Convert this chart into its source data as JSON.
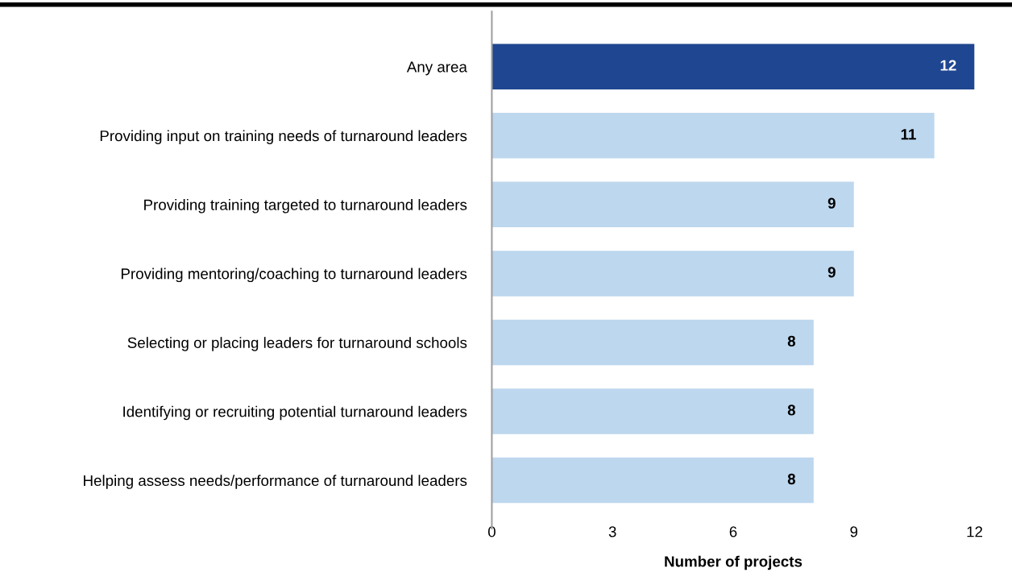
{
  "chart_data": {
    "type": "bar",
    "orientation": "horizontal",
    "xlabel": "Number of projects",
    "categories": [
      "Any area",
      "Providing input on training needs of turnaround leaders",
      "Providing training targeted to turnaround leaders",
      "Providing mentoring/coaching to turnaround leaders",
      "Selecting or placing leaders for turnaround schools",
      "Identifying or recruiting potential turnaround leaders",
      "Helping assess needs/performance of turnaround leaders"
    ],
    "values": [
      12,
      11,
      9,
      9,
      8,
      8,
      8
    ],
    "colors": [
      "#1f4690",
      "#bdd7ee",
      "#bdd7ee",
      "#bdd7ee",
      "#bdd7ee",
      "#bdd7ee",
      "#bdd7ee"
    ],
    "xlim": [
      0,
      12
    ],
    "xticks": [
      0,
      3,
      6,
      9,
      12
    ],
    "grid": false,
    "legend": false,
    "data_labels": true
  }
}
